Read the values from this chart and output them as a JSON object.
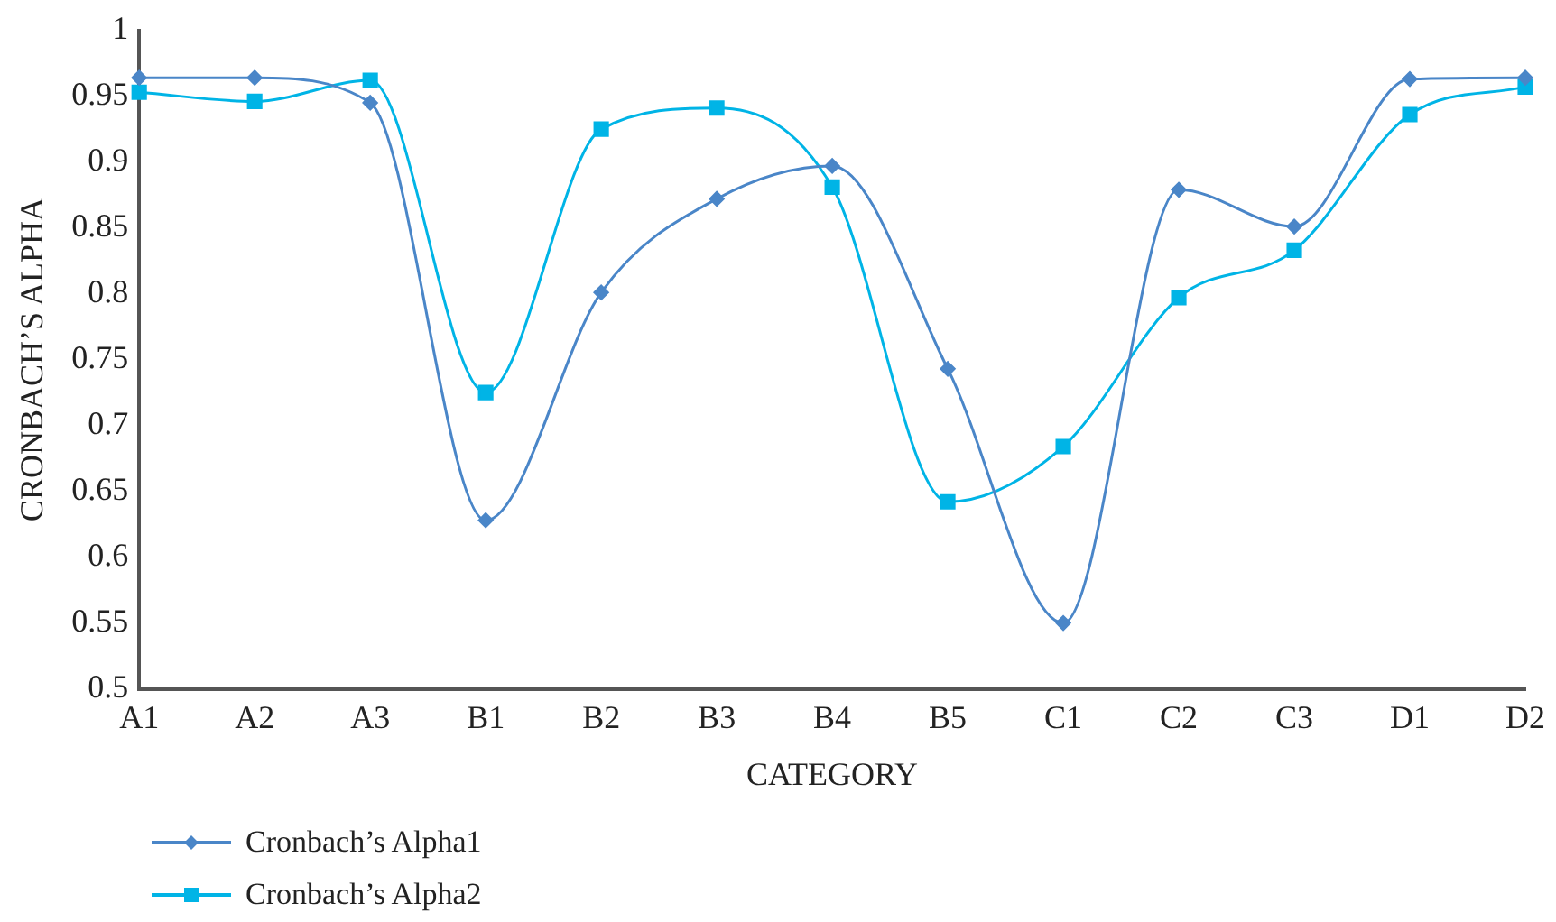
{
  "chart_data": {
    "type": "line",
    "xlabel": "CATEGORY",
    "ylabel": "CRONBACH’S ALPHA",
    "categories": [
      "A1",
      "A2",
      "A3",
      "B1",
      "B2",
      "B3",
      "B4",
      "B5",
      "C1",
      "C2",
      "C3",
      "D1",
      "D2"
    ],
    "series": [
      {
        "name": "Cronbach’s Alpha1",
        "color": "#4a86c8",
        "marker": "diamond",
        "values": [
          0.964,
          0.964,
          0.945,
          0.628,
          0.801,
          0.872,
          0.897,
          0.743,
          0.55,
          0.879,
          0.851,
          0.963,
          0.964
        ]
      },
      {
        "name": "Cronbach’s Alpha2",
        "color": "#00b4e6",
        "marker": "square",
        "values": [
          0.953,
          0.946,
          0.962,
          0.725,
          0.925,
          0.941,
          0.881,
          0.642,
          0.684,
          0.797,
          0.833,
          0.936,
          0.957
        ]
      }
    ],
    "ylim": [
      0.5,
      1
    ],
    "yticks": [
      0.5,
      0.55,
      0.6,
      0.65,
      0.7,
      0.75,
      0.8,
      0.85,
      0.9,
      0.95,
      1
    ],
    "grid": false,
    "legend": "bottom left"
  }
}
